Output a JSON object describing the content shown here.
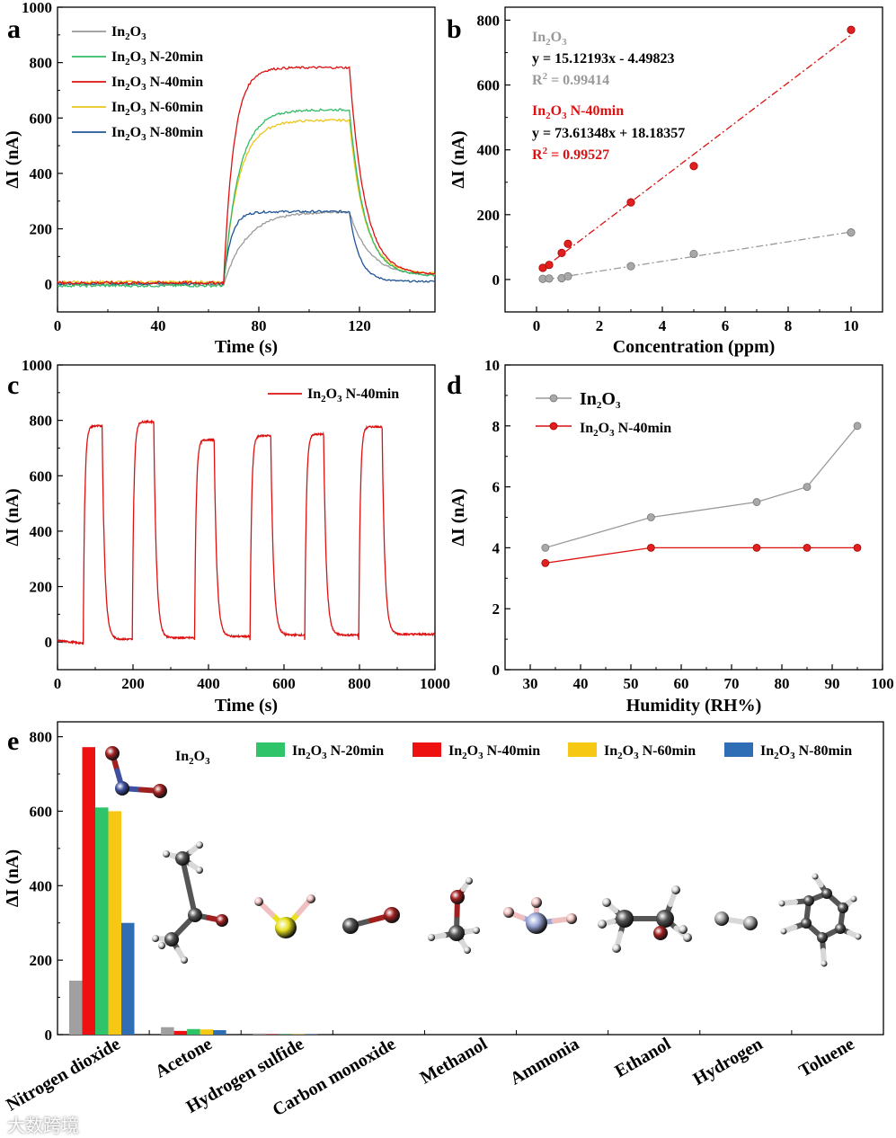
{
  "colors": {
    "In2O3": "#9a9a9a",
    "N20": "#33bb66",
    "N40": "#dd1111",
    "N60": "#ecc51a",
    "N80": "#1f5497",
    "gray_marker": "#a8a8a8",
    "red_marker": "#e02020",
    "axis": "#000000"
  },
  "chart_data": [
    {
      "panel": "a",
      "type": "line",
      "xlabel": "Time (s)",
      "ylabel": "ΔI (nA)",
      "xlim": [
        0,
        150
      ],
      "ylim": [
        -100,
        1000
      ],
      "xticks": [
        0,
        40,
        80,
        120
      ],
      "yticks": [
        0,
        200,
        400,
        600,
        800,
        1000
      ],
      "series": [
        {
          "key": "In2O3",
          "name_main": "In",
          "sub1": "2",
          "mid": "O",
          "sub2": "3",
          "suffix": "",
          "color": "#9a9a9a",
          "baseline": 0,
          "plateau": 262,
          "tau_rise": 9,
          "recov_end": 30,
          "tau_fall": 8
        },
        {
          "key": "N20",
          "name_main": "In",
          "sub1": "2",
          "mid": "O",
          "sub2": "3",
          "suffix": " N-20min",
          "color": "#33bb66",
          "baseline": -5,
          "plateau": 630,
          "tau_rise": 6,
          "recov_end": 30,
          "tau_fall": 6
        },
        {
          "key": "N40",
          "name_main": "In",
          "sub1": "2",
          "mid": "O",
          "sub2": "3",
          "suffix": " N-40min",
          "color": "#dd1111",
          "baseline": 5,
          "plateau": 782,
          "tau_rise": 4,
          "recov_end": 35,
          "tau_fall": 6
        },
        {
          "key": "N60",
          "name_main": "In",
          "sub1": "2",
          "mid": "O",
          "sub2": "3",
          "suffix": " N-60min",
          "color": "#ecc51a",
          "baseline": 8,
          "plateau": 592,
          "tau_rise": 6,
          "recov_end": 38,
          "tau_fall": 6
        },
        {
          "key": "N80",
          "name_main": "In",
          "sub1": "2",
          "mid": "O",
          "sub2": "3",
          "suffix": " N-80min",
          "color": "#1f5497",
          "baseline": 3,
          "plateau": 262,
          "tau_rise": 3,
          "recov_end": 10,
          "tau_fall": 4
        }
      ],
      "gas_on": 66,
      "gas_off": 116
    },
    {
      "panel": "b",
      "type": "scatter",
      "xlabel": "Concentration (ppm)",
      "ylabel": "ΔI (nA)",
      "xlim": [
        -1,
        11
      ],
      "ylim": [
        -100,
        840
      ],
      "xticks": [
        0,
        2,
        4,
        6,
        8,
        10
      ],
      "yticks": [
        0,
        200,
        400,
        600,
        800
      ],
      "series": [
        {
          "name": "In2O3",
          "color": "#9a9a9a",
          "x": [
            0.2,
            0.4,
            0.8,
            1,
            3,
            5,
            10
          ],
          "y": [
            2,
            3,
            4,
            10,
            41,
            79,
            145
          ],
          "fit": {
            "slope": 15.12193,
            "intercept": -4.49823
          }
        },
        {
          "name": "In2O3 N-40min",
          "color": "#dd1111",
          "x": [
            0.2,
            0.4,
            0.8,
            1,
            3,
            5,
            10
          ],
          "y": [
            36,
            45,
            82,
            110,
            238,
            350,
            770
          ],
          "fit": {
            "slope": 73.61348,
            "intercept": 18.18357
          }
        }
      ],
      "annotations": {
        "gray_title": "In2O3",
        "gray_eq": "y = 15.12193x - 4.49823",
        "gray_r2_value": " = 0.99414",
        "red_title": "In2O3 N-40min",
        "red_eq": "y = 73.61348x + 18.18357",
        "red_r2_value": " = 0.99527"
      }
    },
    {
      "panel": "c",
      "type": "line",
      "xlabel": "Time (s)",
      "ylabel": "ΔI (nA)",
      "xlim": [
        0,
        1000
      ],
      "ylim": [
        -100,
        1000
      ],
      "xticks": [
        0,
        200,
        400,
        600,
        800,
        1000
      ],
      "yticks": [
        0,
        200,
        400,
        600,
        800,
        1000
      ],
      "legend": "In2O3 N-40min",
      "color": "#dd1111",
      "cycles": [
        {
          "on": 68,
          "off": 118,
          "peak": 785,
          "recov_end": 10
        },
        {
          "on": 198,
          "off": 255,
          "peak": 790,
          "recov_end": 15
        },
        {
          "on": 363,
          "off": 415,
          "peak": 725,
          "recov_end": 20
        },
        {
          "on": 510,
          "off": 565,
          "peak": 740,
          "recov_end": 25
        },
        {
          "on": 655,
          "off": 705,
          "peak": 745,
          "recov_end": 25
        },
        {
          "on": 798,
          "off": 860,
          "peak": 772,
          "recov_end": 28
        }
      ]
    },
    {
      "panel": "d",
      "type": "line",
      "xlabel": "Humidity (RH%)",
      "ylabel": "ΔI (nA)",
      "xlim": [
        25,
        100
      ],
      "ylim": [
        0,
        10
      ],
      "xticks": [
        30,
        40,
        50,
        60,
        70,
        80,
        90,
        100
      ],
      "yticks": [
        0,
        2,
        4,
        6,
        8,
        10
      ],
      "series": [
        {
          "name": "In2O3",
          "color": "#9a9a9a",
          "x": [
            33,
            54,
            75,
            85,
            95
          ],
          "y": [
            4,
            5,
            5.5,
            6,
            8
          ]
        },
        {
          "name": "In2O3 N-40min",
          "color": "#dd1111",
          "x": [
            33,
            54,
            75,
            85,
            95
          ],
          "y": [
            3.5,
            4,
            4,
            4,
            4
          ]
        }
      ]
    },
    {
      "panel": "e",
      "type": "bar",
      "ylabel": "ΔI (nA)",
      "ylim": [
        0,
        840
      ],
      "yticks": [
        0,
        200,
        400,
        600,
        800
      ],
      "categories": [
        "Nitrogen dioxide",
        "Acetone",
        "Hydrogen sulfide",
        "Carbon monoxide",
        "Methanol",
        "Ammonia",
        "Ethanol",
        "Hydrogen",
        "Toluene"
      ],
      "series": [
        {
          "key": "In2O3",
          "suffix": "",
          "color": "#a0a0a0",
          "values": [
            145,
            20,
            3,
            0,
            0,
            0,
            0,
            0,
            0
          ]
        },
        {
          "key": "N40",
          "suffix": " N-40min",
          "color": "#ee1111",
          "values": [
            772,
            10,
            1,
            0,
            0,
            0,
            0,
            0,
            0
          ]
        },
        {
          "key": "N20",
          "suffix": " N-20min",
          "color": "#2fc46a",
          "values": [
            610,
            15,
            1,
            0,
            0,
            0,
            0,
            0,
            0
          ]
        },
        {
          "key": "N60",
          "suffix": " N-60min",
          "color": "#f6c814",
          "values": [
            600,
            14,
            1,
            0,
            0,
            0,
            0,
            0,
            0
          ]
        },
        {
          "key": "N80",
          "suffix": " N-80min",
          "color": "#2f6db5",
          "values": [
            300,
            12,
            1,
            0,
            0,
            0,
            0,
            0,
            0
          ]
        }
      ],
      "legend_order": [
        "In2O3",
        "N20",
        "N40",
        "N60",
        "N80"
      ]
    }
  ],
  "panels": {
    "a": {
      "label": "a"
    },
    "b": {
      "label": "b"
    },
    "c": {
      "label": "c"
    },
    "d": {
      "label": "d"
    },
    "e": {
      "label": "e"
    }
  },
  "legend_text": {
    "in": "In",
    "two": "2",
    "o": "O",
    "three": "3",
    "r": "R",
    "sq": "2"
  },
  "molecule_icons": [
    "no2-molecule-icon",
    "acetone-molecule-icon",
    "h2s-molecule-icon",
    "co-molecule-icon",
    "methanol-molecule-icon",
    "ammonia-molecule-icon",
    "ethanol-molecule-icon",
    "hydrogen-molecule-icon",
    "toluene-molecule-icon"
  ],
  "watermark": "大数跨境"
}
